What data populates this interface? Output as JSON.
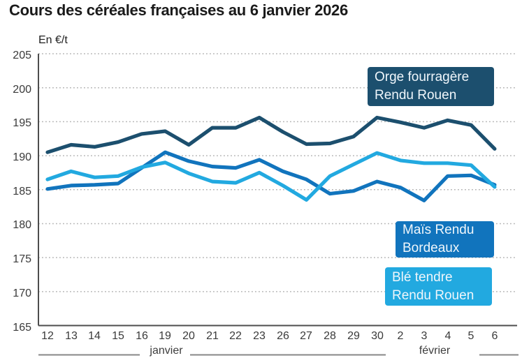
{
  "title": "Cours des céréales françaises au 6 janvier 2026",
  "colors": {
    "orge": "#1c4f6e",
    "mais": "#1174bd",
    "ble": "#22a9e0",
    "grid": "#b3b3b3",
    "axis": "#4d4d4d",
    "bracket": "#878787",
    "title_text": "#1a1a1a",
    "legend_text": "#eff6fb"
  },
  "legends": [
    {
      "id": "legend-orge",
      "line1": "Orge fourragère",
      "line2": "Rendu Rouen",
      "series": "Orge fourragère Rendu Rouen"
    },
    {
      "id": "legend-mais",
      "line1": "Maïs Rendu",
      "line2": "Bordeaux",
      "series": "Maïs Rendu Bordeaux"
    },
    {
      "id": "legend-ble",
      "line1": "Blé tendre",
      "line2": "Rendu Rouen",
      "series": "Blé tendre Rendu Rouen"
    }
  ],
  "chart_data": {
    "type": "line",
    "title": "Cours des céréales françaises au 6 janvier 2026",
    "ylabel": "En €/t",
    "unit_label": "En €/t",
    "ylim": [
      165,
      205
    ],
    "y_ticks": [
      165,
      170,
      175,
      180,
      185,
      190,
      195,
      200,
      205
    ],
    "grid": "dotted horizontal gridlines, solid left and bottom axes",
    "legend_position": "boxes overlaid on plot, right side",
    "x_tick_labels": [
      "12",
      "13",
      "14",
      "15",
      "16",
      "19",
      "20",
      "21",
      "22",
      "23",
      "26",
      "27",
      "28",
      "29",
      "30",
      "2",
      "3",
      "4",
      "5",
      "6"
    ],
    "months": [
      {
        "label": "janvier",
        "label_x": 238,
        "segments": [
          [
            55,
            200
          ],
          [
            272,
            552
          ]
        ]
      },
      {
        "label": "février",
        "label_x": 622,
        "segments": [
          [
            686,
            742
          ]
        ]
      }
    ],
    "series": [
      {
        "name": "Orge fourragère Rendu Rouen",
        "color": "#1c4f6e",
        "values": [
          190.5,
          191.6,
          191.3,
          192.0,
          193.2,
          193.6,
          191.6,
          194.1,
          194.1,
          195.6,
          193.5,
          191.7,
          191.8,
          192.8,
          195.6,
          194.9,
          194.1,
          195.2,
          194.5,
          191.0
        ]
      },
      {
        "name": "Maïs Rendu Bordeaux",
        "color": "#1174bd",
        "values": [
          185.1,
          185.6,
          185.7,
          185.9,
          188.2,
          190.5,
          189.2,
          188.4,
          188.2,
          189.4,
          187.7,
          186.5,
          184.4,
          184.8,
          186.2,
          185.3,
          183.4,
          187.0,
          187.1,
          185.7
        ]
      },
      {
        "name": "Blé tendre Rendu Rouen",
        "color": "#22a9e0",
        "values": [
          186.5,
          187.7,
          186.8,
          187.0,
          188.3,
          189.0,
          187.4,
          186.2,
          186.0,
          187.5,
          185.6,
          183.5,
          187.0,
          188.7,
          190.4,
          189.3,
          188.9,
          188.9,
          188.6,
          185.4
        ]
      }
    ],
    "layout": {
      "plot_left": 55,
      "plot_right": 740,
      "plot_top": 77,
      "plot_bottom": 466.5,
      "x_first": 68,
      "x_step": 33.68,
      "bracket_y": 508.5,
      "line_width": 5.2
    }
  }
}
